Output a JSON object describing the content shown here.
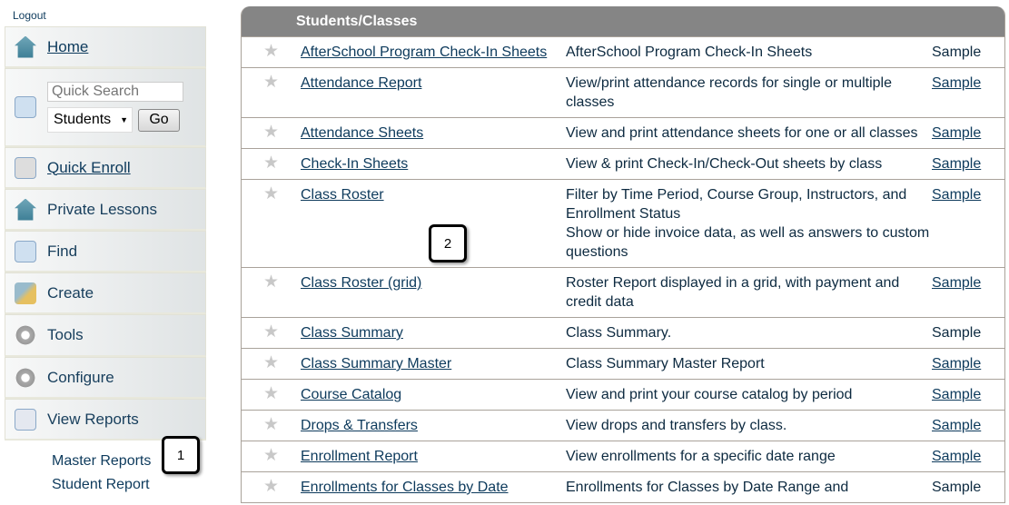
{
  "logout": "Logout",
  "sidebar": {
    "home": "Home",
    "search_placeholder": "Quick Search",
    "search_scope": "Students",
    "go": "Go",
    "items": [
      "Quick Enroll",
      "Private Lessons",
      "Find",
      "Create",
      "Tools",
      "Configure",
      "View Reports"
    ],
    "sub_items": [
      "Master Reports",
      "Student Report"
    ]
  },
  "table": {
    "header": "Students/Classes",
    "rows": [
      {
        "name": "AfterSchool Program Check-In Sheets",
        "desc": "AfterSchool Program Check-In Sheets",
        "sample": "Sample",
        "sample_link": false
      },
      {
        "name": "Attendance Report",
        "desc": "View/print attendance records for single or multiple classes",
        "sample": "Sample",
        "sample_link": true
      },
      {
        "name": "Attendance Sheets",
        "desc": "View and print attendance sheets for one or all classes",
        "sample": "Sample",
        "sample_link": true
      },
      {
        "name": "Check-In Sheets",
        "desc": "View & print Check-In/Check-Out sheets by class",
        "sample": "Sample",
        "sample_link": true
      },
      {
        "name": "Class Roster",
        "desc": "Filter by Time Period, Course Group, Instructors, and Enrollment Status\nShow or hide invoice data, as well as answers to custom questions",
        "sample": "Sample",
        "sample_link": true
      },
      {
        "name": "Class Roster (grid)",
        "desc": "Roster Report displayed in a grid, with payment and credit data",
        "sample": "Sample",
        "sample_link": true
      },
      {
        "name": "Class Summary",
        "desc": "Class Summary.",
        "sample": "Sample",
        "sample_link": false
      },
      {
        "name": "Class Summary Master",
        "desc": "Class Summary Master Report",
        "sample": "Sample",
        "sample_link": true
      },
      {
        "name": "Course Catalog",
        "desc": "View and print your course catalog by period",
        "sample": "Sample",
        "sample_link": true
      },
      {
        "name": "Drops & Transfers",
        "desc": "View drops and transfers by class.",
        "sample": "Sample",
        "sample_link": true
      },
      {
        "name": "Enrollment Report",
        "desc": "View enrollments for a specific date range",
        "sample": "Sample",
        "sample_link": true
      },
      {
        "name": "Enrollments for Classes by Date",
        "desc": "Enrollments for Classes by Date Range and",
        "sample": "Sample",
        "sample_link": false
      }
    ]
  },
  "callouts": [
    "1",
    "2"
  ]
}
